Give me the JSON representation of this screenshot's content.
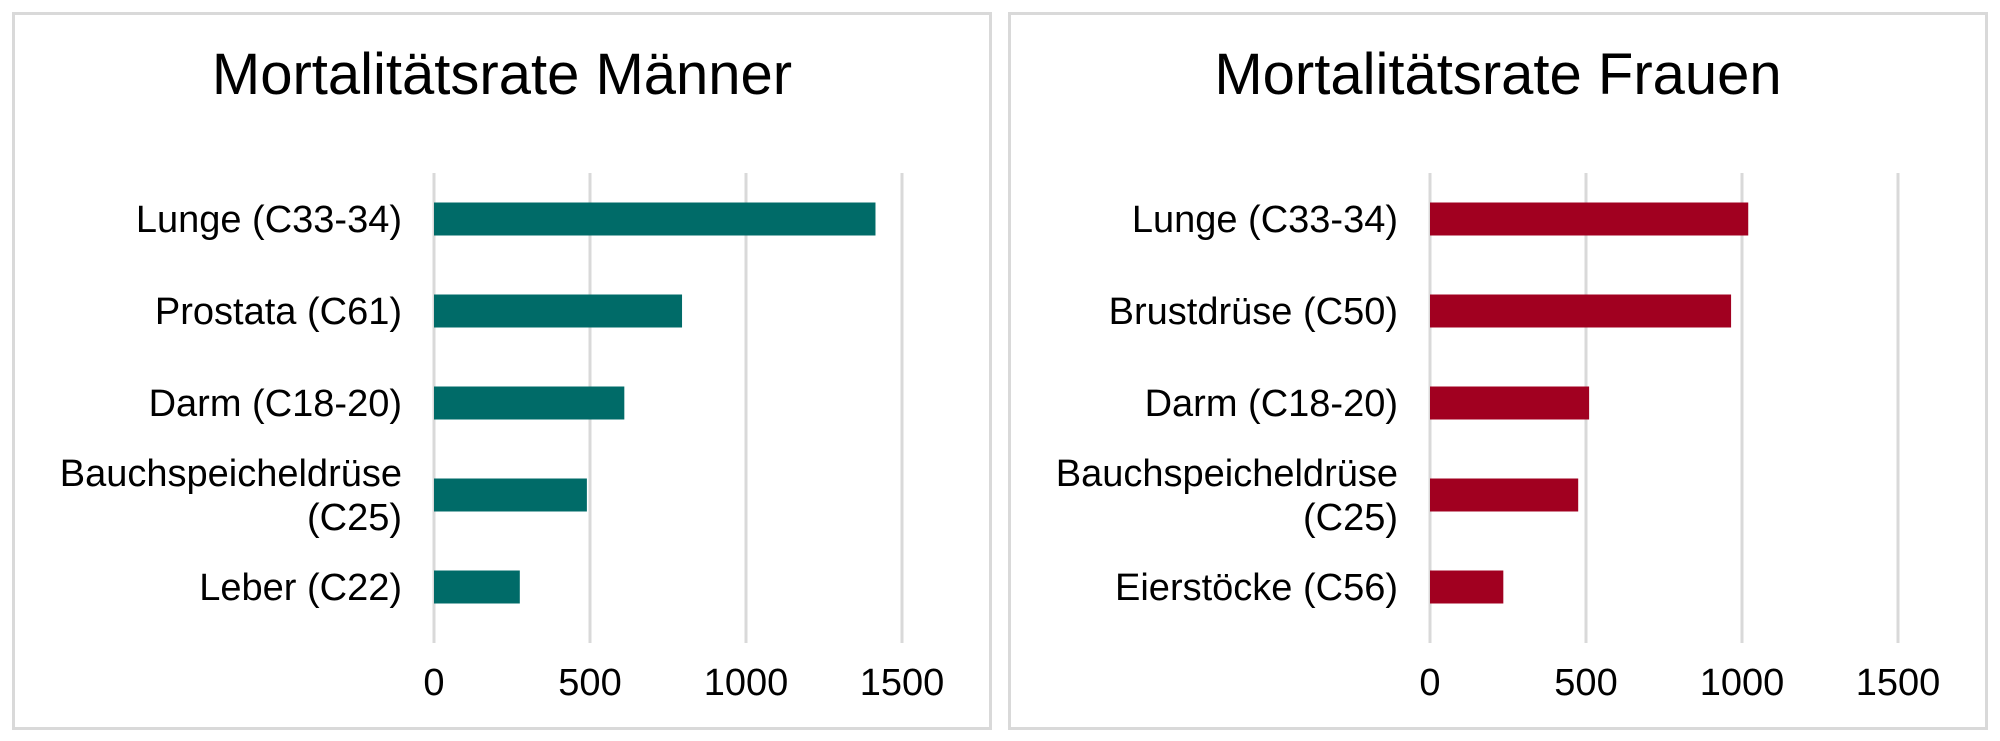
{
  "chart_data": [
    {
      "type": "bar",
      "orientation": "horizontal",
      "title": "Mortalitätsrate Männer",
      "categories": [
        [
          "Lunge (C33-34)"
        ],
        [
          "Prostata (C61)"
        ],
        [
          "Darm (C18-20)"
        ],
        [
          "Bauchspeicheldrüse",
          "(C25)"
        ],
        [
          "Leber (C22)"
        ]
      ],
      "values": [
        1415,
        795,
        610,
        490,
        275
      ],
      "xlim": [
        0,
        1500
      ],
      "xticks": [
        "0",
        "500",
        "1000",
        "1500"
      ],
      "grid": "vertical",
      "color": "#006b68"
    },
    {
      "type": "bar",
      "orientation": "horizontal",
      "title": "Mortalitätsrate Frauen",
      "categories": [
        [
          "Lunge (C33-34)"
        ],
        [
          "Brustdrüse (C50)"
        ],
        [
          "Darm (C18-20)"
        ],
        [
          "Bauchspeicheldrüse",
          "(C25)"
        ],
        [
          "Eierstöcke (C56)"
        ]
      ],
      "values": [
        1020,
        965,
        510,
        475,
        235
      ],
      "xlim": [
        0,
        1500
      ],
      "xticks": [
        "0",
        "500",
        "1000",
        "1500"
      ],
      "grid": "vertical",
      "color": "#a10020"
    }
  ]
}
